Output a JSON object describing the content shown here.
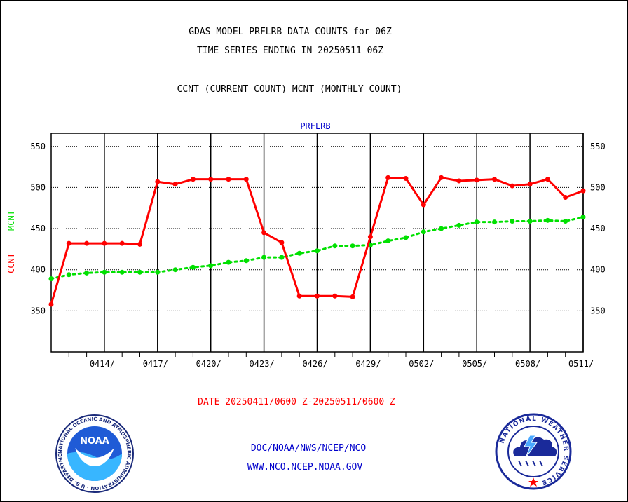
{
  "header": {
    "title_line1": "GDAS MODEL PRFLRB DATA COUNTS for 06Z",
    "title_line2": "TIME SERIES ENDING IN 20250511 06Z",
    "subtitle": "CCNT (CURRENT COUNT) MCNT (MONTHLY COUNT)"
  },
  "footer": {
    "date_range": "DATE 20250411/0600 Z-20250511/0600 Z",
    "org_line": "DOC/NOAA/NWS/NCEP/NCO",
    "url_line": "WWW.NCO.NCEP.NOAA.GOV"
  },
  "logos": {
    "noaa_text": "NOAA",
    "noaa_ring_text": "NATIONAL OCEANIC AND ATMOSPHERIC ADMINISTRATION · U.S. DEPARTMENT OF COMMERCE ·",
    "nws_ring_text": "NATIONAL WEATHER SERVICE"
  },
  "colors": {
    "ccnt": "#ff0000",
    "mcnt": "#00e000",
    "axis": "#000000",
    "panel_title": "#0000cc",
    "footer_links": "#0000cc"
  },
  "chart_data": {
    "type": "line",
    "title": "PRFLRB",
    "ylabel_series": [
      "CCNT",
      "MCNT"
    ],
    "x_start_day": 11,
    "x_days_total": 30,
    "ylim": [
      300,
      566
    ],
    "yticks": [
      350,
      400,
      450,
      500,
      550
    ],
    "xtick_labels": [
      "0414/",
      "0417/",
      "0420/",
      "0423/",
      "0426/",
      "0429/",
      "0502/",
      "0505/",
      "0508/",
      "0511/"
    ],
    "x": [
      "0411",
      "0412",
      "0413",
      "0414",
      "0415",
      "0416",
      "0417",
      "0418",
      "0419",
      "0420",
      "0421",
      "0422",
      "0423",
      "0424",
      "0425",
      "0426",
      "0427",
      "0428",
      "0429",
      "0430",
      "0501",
      "0502",
      "0503",
      "0504",
      "0505",
      "0506",
      "0507",
      "0508",
      "0509",
      "0510",
      "0511"
    ],
    "grid": true,
    "series": [
      {
        "name": "CCNT",
        "color": "#ff0000",
        "values": [
          358,
          432,
          432,
          432,
          432,
          431,
          507,
          504,
          510,
          510,
          510,
          510,
          445,
          433,
          368,
          368,
          368,
          367,
          440,
          512,
          511,
          479,
          512,
          508,
          509,
          510,
          502,
          504,
          510,
          488,
          496
        ]
      },
      {
        "name": "MCNT",
        "color": "#00e000",
        "values": [
          389,
          394,
          396,
          397,
          397,
          397,
          397,
          400,
          403,
          405,
          409,
          411,
          415,
          415,
          420,
          423,
          429,
          429,
          430,
          435,
          439,
          446,
          450,
          454,
          458,
          458,
          459,
          459,
          460,
          459,
          464
        ]
      }
    ]
  }
}
